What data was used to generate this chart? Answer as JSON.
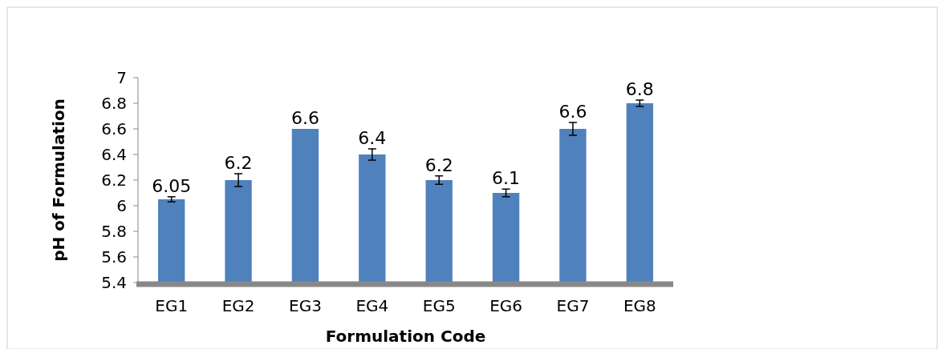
{
  "chart_data": {
    "type": "bar",
    "xlabel": "Formulation Code",
    "ylabel": "pH of Formulation",
    "categories": [
      "EG1",
      "EG2",
      "EG3",
      "EG4",
      "EG5",
      "EG6",
      "EG7",
      "EG8"
    ],
    "values": [
      6.05,
      6.2,
      6.6,
      6.4,
      6.2,
      6.1,
      6.6,
      6.8
    ],
    "errors": [
      0.02,
      0.05,
      null,
      0.044,
      0.033,
      0.03,
      0.05,
      0.025
    ],
    "data_labels": true,
    "color": "#4f81bd",
    "ylim": [
      5.4,
      7
    ],
    "yticks": [
      5.4,
      5.6,
      5.8,
      6,
      6.2,
      6.4,
      6.6,
      6.8,
      7
    ],
    "grid": false
  }
}
